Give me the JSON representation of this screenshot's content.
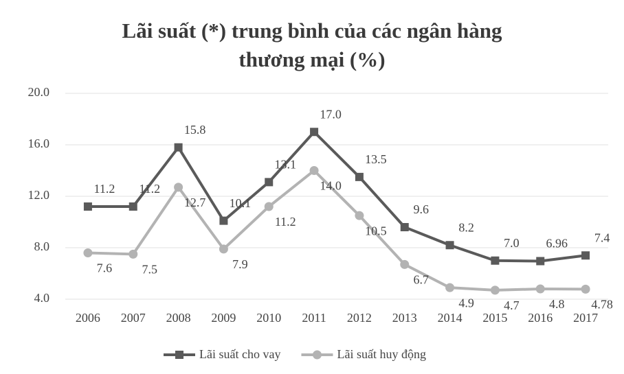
{
  "chart_data": {
    "type": "line",
    "title": "Lãi suất (*) trung bình của các ngân hàng thương mại (%)",
    "categories": [
      "2006",
      "2007",
      "2008",
      "2009",
      "2010",
      "2011",
      "2012",
      "2013",
      "2014",
      "2015",
      "2016",
      "2017"
    ],
    "series": [
      {
        "name": "Lãi suất cho vay",
        "color": "#5a5a5a",
        "marker": "square",
        "values": [
          11.2,
          11.2,
          15.8,
          10.1,
          13.1,
          17.0,
          13.5,
          9.6,
          8.2,
          7.0,
          6.96,
          7.4
        ],
        "value_labels": [
          "11.2",
          "11.2",
          "15.8",
          "10.1",
          "13.1",
          "17.0",
          "13.5",
          "9.6",
          "8.2",
          "7.0",
          "6.96",
          "7.4"
        ]
      },
      {
        "name": "Lãi suất huy động",
        "color": "#b3b3b3",
        "marker": "circle",
        "values": [
          7.6,
          7.5,
          12.7,
          7.9,
          11.2,
          14.0,
          10.5,
          6.7,
          4.9,
          4.7,
          4.8,
          4.78
        ],
        "value_labels": [
          "7.6",
          "7.5",
          "12.7",
          "7.9",
          "11.2",
          "14.0",
          "10.5",
          "6.7",
          "4.9",
          "4.7",
          "4.8",
          "4.78"
        ]
      }
    ],
    "ylim": [
      4,
      20
    ],
    "yticks": [
      {
        "value": 4,
        "label": "4.0"
      },
      {
        "value": 8,
        "label": "8.0"
      },
      {
        "value": 12,
        "label": "12.0"
      },
      {
        "value": 16,
        "label": "16.0"
      },
      {
        "value": 20,
        "label": "20.0"
      }
    ],
    "grid": true,
    "legend": "bottom"
  }
}
